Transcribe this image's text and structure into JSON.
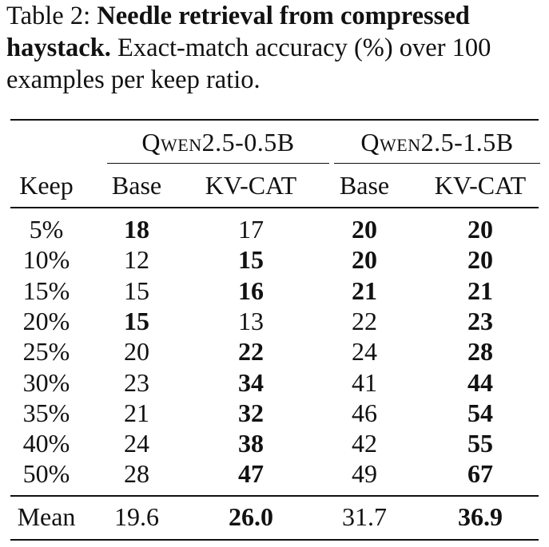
{
  "caption": {
    "label": "Table 2:",
    "title": "Needle retrieval from compressed haystack.",
    "text": "Exact-match accuracy (%) over 100 examples per keep ratio."
  },
  "header": {
    "groups": [
      "Qwen2.5-0.5B",
      "Qwen2.5-1.5B"
    ],
    "columns": [
      "Keep",
      "Base",
      "KV-CAT",
      "Base",
      "KV-CAT"
    ]
  },
  "rows": [
    {
      "keep": "5%",
      "cells": [
        {
          "v": "18",
          "b": true
        },
        {
          "v": "17",
          "b": false
        },
        {
          "v": "20",
          "b": true
        },
        {
          "v": "20",
          "b": true
        }
      ]
    },
    {
      "keep": "10%",
      "cells": [
        {
          "v": "12",
          "b": false
        },
        {
          "v": "15",
          "b": true
        },
        {
          "v": "20",
          "b": true
        },
        {
          "v": "20",
          "b": true
        }
      ]
    },
    {
      "keep": "15%",
      "cells": [
        {
          "v": "15",
          "b": false
        },
        {
          "v": "16",
          "b": true
        },
        {
          "v": "21",
          "b": true
        },
        {
          "v": "21",
          "b": true
        }
      ]
    },
    {
      "keep": "20%",
      "cells": [
        {
          "v": "15",
          "b": true
        },
        {
          "v": "13",
          "b": false
        },
        {
          "v": "22",
          "b": false
        },
        {
          "v": "23",
          "b": true
        }
      ]
    },
    {
      "keep": "25%",
      "cells": [
        {
          "v": "20",
          "b": false
        },
        {
          "v": "22",
          "b": true
        },
        {
          "v": "24",
          "b": false
        },
        {
          "v": "28",
          "b": true
        }
      ]
    },
    {
      "keep": "30%",
      "cells": [
        {
          "v": "23",
          "b": false
        },
        {
          "v": "34",
          "b": true
        },
        {
          "v": "41",
          "b": false
        },
        {
          "v": "44",
          "b": true
        }
      ]
    },
    {
      "keep": "35%",
      "cells": [
        {
          "v": "21",
          "b": false
        },
        {
          "v": "32",
          "b": true
        },
        {
          "v": "46",
          "b": false
        },
        {
          "v": "54",
          "b": true
        }
      ]
    },
    {
      "keep": "40%",
      "cells": [
        {
          "v": "24",
          "b": false
        },
        {
          "v": "38",
          "b": true
        },
        {
          "v": "42",
          "b": false
        },
        {
          "v": "55",
          "b": true
        }
      ]
    },
    {
      "keep": "50%",
      "cells": [
        {
          "v": "28",
          "b": false
        },
        {
          "v": "47",
          "b": true
        },
        {
          "v": "49",
          "b": false
        },
        {
          "v": "67",
          "b": true
        }
      ]
    }
  ],
  "mean": {
    "keep": "Mean",
    "cells": [
      {
        "v": "19.6",
        "b": false
      },
      {
        "v": "26.0",
        "b": true
      },
      {
        "v": "31.7",
        "b": false
      },
      {
        "v": "36.9",
        "b": true
      }
    ]
  }
}
